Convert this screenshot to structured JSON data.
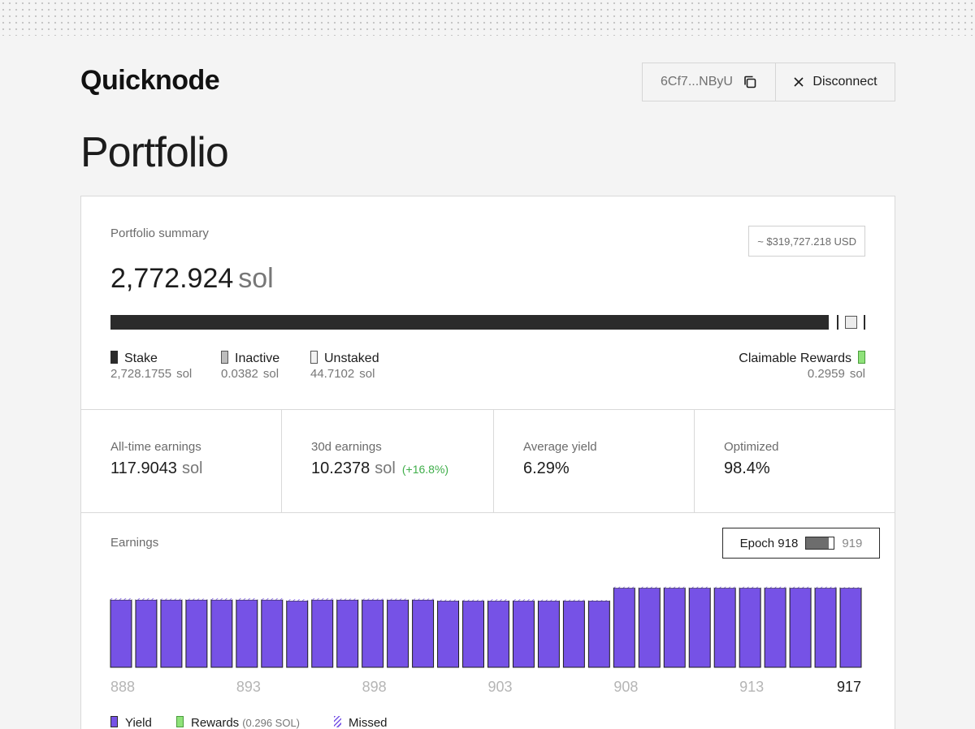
{
  "app": {
    "logo": "Quicknode"
  },
  "wallet": {
    "address": "6Cf7...NByU",
    "copy_icon": "copy-icon",
    "disconnect_label": "Disconnect",
    "close_icon": "close-icon"
  },
  "page_title": "Portfolio",
  "summary": {
    "label": "Portfolio summary",
    "usd_value": "~ $319,727.218 USD",
    "total": "2,772.924",
    "unit": "sol",
    "breakdown": [
      {
        "name": "Stake",
        "value": "2,728.1755",
        "unit": "sol",
        "amount": 2728.1755
      },
      {
        "name": "Inactive",
        "value": "0.0382",
        "unit": "sol",
        "amount": 0.0382
      },
      {
        "name": "Unstaked",
        "value": "44.7102",
        "unit": "sol",
        "amount": 44.7102
      }
    ],
    "claimable": {
      "name": "Claimable Rewards",
      "value": "0.2959",
      "unit": "sol"
    }
  },
  "stats": [
    {
      "label": "All-time earnings",
      "value": "117.9043",
      "unit": "sol",
      "change": ""
    },
    {
      "label": "30d earnings",
      "value": "10.2378",
      "unit": "sol",
      "change": "(+16.8%)"
    },
    {
      "label": "Average yield",
      "value": "6.29%",
      "unit": "",
      "change": ""
    },
    {
      "label": "Optimized",
      "value": "98.4%",
      "unit": "",
      "change": ""
    }
  ],
  "earnings": {
    "label": "Earnings",
    "epoch_label": "Epoch 918",
    "epoch_next": "919",
    "epoch_progress": 0.8,
    "legend": {
      "yield": "Yield",
      "rewards": "Rewards",
      "rewards_note": "(0.296 SOL)",
      "missed": "Missed"
    }
  },
  "colors": {
    "yield": "#7652e6",
    "rewards": "#8fe27a",
    "stake": "#2b2b2b",
    "positive": "#3fae4a"
  },
  "chart_data": {
    "type": "bar",
    "categories": [
      888,
      889,
      890,
      891,
      892,
      893,
      894,
      895,
      896,
      897,
      898,
      899,
      900,
      901,
      902,
      903,
      904,
      905,
      906,
      907,
      908,
      909,
      910,
      911,
      912,
      913,
      914,
      915,
      916,
      917
    ],
    "tick_labels": [
      "888",
      "893",
      "898",
      "903",
      "908",
      "913",
      "917"
    ],
    "highlight_tick": "917",
    "series": [
      {
        "name": "Yield",
        "values": [
          3.4,
          3.4,
          3.4,
          3.4,
          3.4,
          3.4,
          3.4,
          3.35,
          3.4,
          3.4,
          3.4,
          3.4,
          3.4,
          3.35,
          3.35,
          3.35,
          3.35,
          3.35,
          3.35,
          3.35,
          4.0,
          4.0,
          4.0,
          4.0,
          4.0,
          4.0,
          4.0,
          4.0,
          4.0,
          4.0
        ]
      },
      {
        "name": "Missed",
        "values": [
          0.08,
          0.08,
          0.06,
          0.06,
          0.08,
          0.08,
          0.08,
          0.08,
          0.08,
          0.06,
          0.06,
          0.06,
          0.06,
          0.06,
          0.06,
          0.08,
          0.08,
          0.06,
          0.06,
          0.04,
          0.06,
          0.06,
          0.06,
          0.06,
          0.06,
          0.06,
          0.06,
          0.06,
          0.06,
          0.04
        ]
      }
    ],
    "ylim": [
      0,
      4.5
    ]
  }
}
